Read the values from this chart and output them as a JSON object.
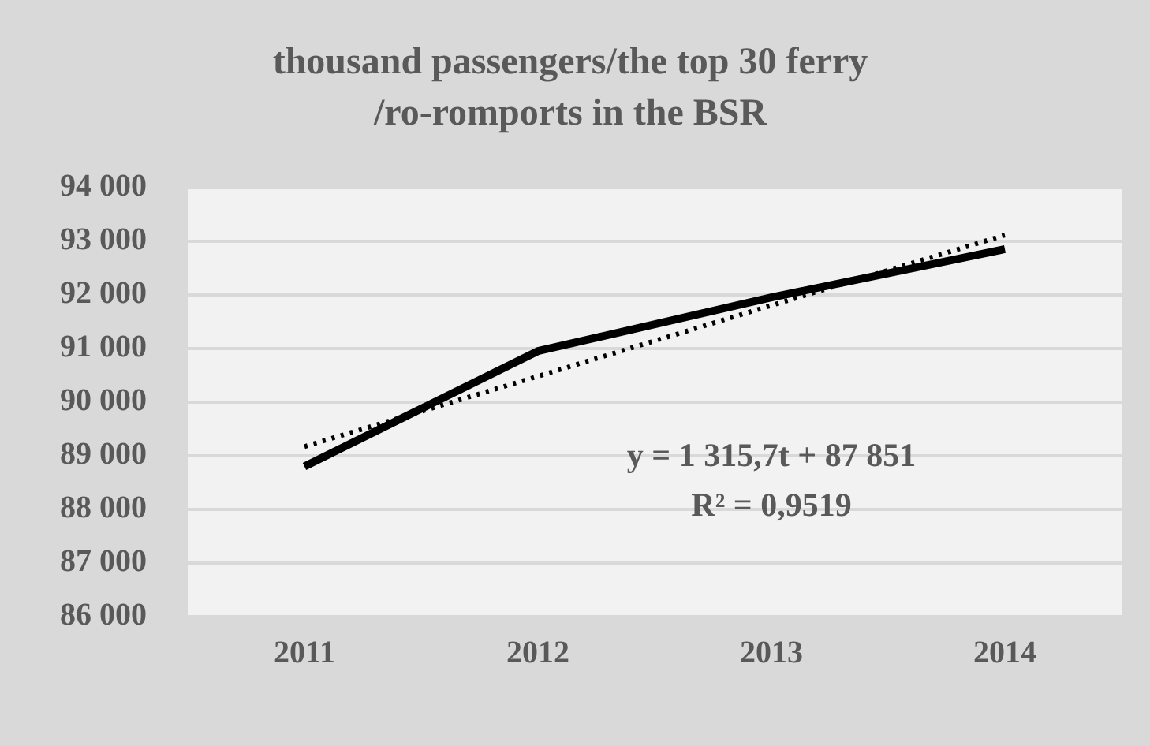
{
  "chart_data": {
    "type": "line",
    "title": "thousand passengers/the top 30 ferry\n/ro-romports in the BSR",
    "categories": [
      "2011",
      "2012",
      "2013",
      "2014"
    ],
    "series": [
      {
        "color": "#000000",
        "values": [
          88800,
          90950,
          91950,
          92850
        ],
        "line_style": "solid"
      },
      {
        "color": "#000000",
        "values": [
          89170,
          90480,
          91800,
          93110
        ],
        "line_style": "dotted"
      }
    ],
    "ylim": [
      86000,
      94000
    ],
    "yticks": [
      {
        "value": 86000,
        "label": "86 000"
      },
      {
        "value": 87000,
        "label": "87 000"
      },
      {
        "value": 88000,
        "label": "88 000"
      },
      {
        "value": 89000,
        "label": "89 000"
      },
      {
        "value": 90000,
        "label": "90 000"
      },
      {
        "value": 91000,
        "label": "91 000"
      },
      {
        "value": 92000,
        "label": "92 000"
      },
      {
        "value": 93000,
        "label": "93 000"
      },
      {
        "value": 94000,
        "label": "94 000"
      }
    ],
    "grid": "y",
    "legend": false,
    "marker": "none",
    "annotations": [
      "y = 1 315,7t + 87 851",
      "R² = 0,9519"
    ]
  }
}
